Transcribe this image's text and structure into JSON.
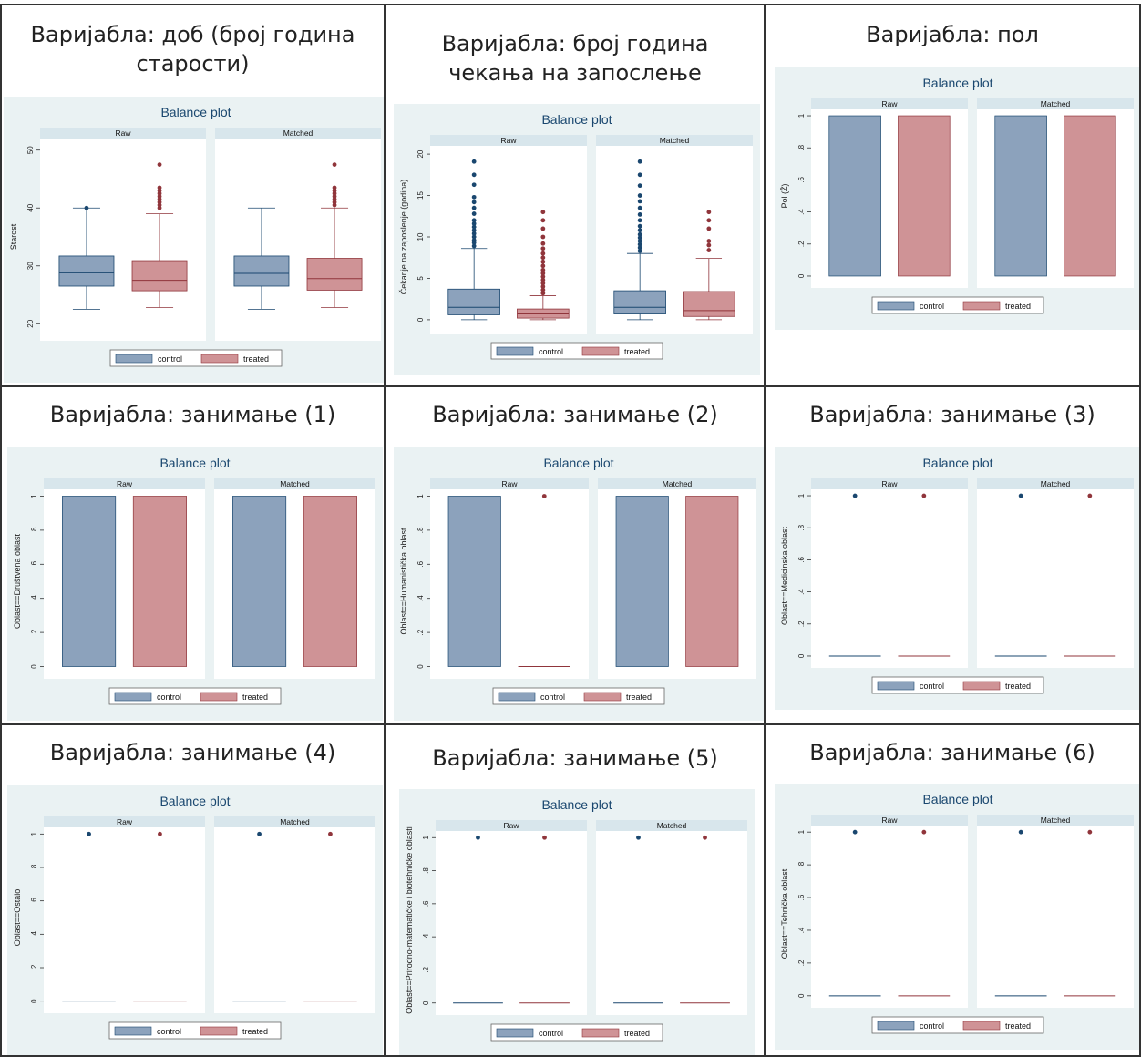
{
  "colors": {
    "panel_bg": "#eaf2f3",
    "plot_bg": "#ffffff",
    "strip_bg": "#d8e6ec",
    "control": "#8ca2bc",
    "control_stroke": "#1a476f",
    "treated": "#cf9396",
    "treated_stroke": "#90353b",
    "title": "#1a476f"
  },
  "cells": [
    {
      "title": "Варијабла: доб (број година старости)"
    },
    {
      "title": "Варијабла: број година чекања на запослење"
    },
    {
      "title": "Варијабла: пол"
    },
    {
      "title": "Варијабла: занимање (1)"
    },
    {
      "title": "Варијабла: занимање (2)"
    },
    {
      "title": "Варијабла: занимање (3)"
    },
    {
      "title": "Варијабла: занимање (4)"
    },
    {
      "title": "Варијабла: занимање (5)"
    },
    {
      "title": "Варијабла: занимање (6)"
    }
  ],
  "chart_data": [
    {
      "type": "boxplot",
      "title": "Balance plot",
      "ylabel": "Starost",
      "panels": [
        "Raw",
        "Matched"
      ],
      "legend": [
        "control",
        "treated"
      ],
      "ylim": [
        18,
        52
      ],
      "yticks": [
        "20",
        "30",
        "40",
        "50"
      ],
      "ytick_values": [
        20,
        30,
        40,
        50
      ],
      "series": [
        {
          "name": "control",
          "panel": "Raw",
          "min": 22.5,
          "q1": 26.5,
          "median": 28.8,
          "q3": 31.7,
          "max": 40,
          "outliers": [
            40
          ]
        },
        {
          "name": "treated",
          "panel": "Raw",
          "min": 22.8,
          "q1": 25.7,
          "median": 27.5,
          "q3": 30.9,
          "max": 39,
          "outliers": [
            40,
            40.5,
            41,
            41.5,
            42,
            42.5,
            43,
            43.5,
            47.5
          ]
        },
        {
          "name": "control",
          "panel": "Matched",
          "min": 22.5,
          "q1": 26.5,
          "median": 28.7,
          "q3": 31.7,
          "max": 40,
          "outliers": []
        },
        {
          "name": "treated",
          "panel": "Matched",
          "min": 22.8,
          "q1": 25.8,
          "median": 27.8,
          "q3": 31.3,
          "max": 40,
          "outliers": [
            40.5,
            41,
            41.5,
            42,
            42.5,
            43,
            43.5,
            47.5
          ]
        }
      ]
    },
    {
      "type": "boxplot",
      "title": "Balance plot",
      "ylabel": "Čekanje na zaposlenje (godina)",
      "panels": [
        "Raw",
        "Matched"
      ],
      "legend": [
        "control",
        "treated"
      ],
      "ylim": [
        -1,
        21
      ],
      "yticks": [
        "0",
        "5",
        "10",
        "15",
        "20"
      ],
      "ytick_values": [
        0,
        5,
        10,
        15,
        20
      ],
      "series": [
        {
          "name": "control",
          "panel": "Raw",
          "min": 0,
          "q1": 0.6,
          "median": 1.5,
          "q3": 3.7,
          "max": 8.6,
          "outliers": [
            8.9,
            9.3,
            9.6,
            10,
            10.4,
            10.8,
            11.2,
            11.6,
            12,
            12.8,
            13.5,
            14.2,
            14.8,
            16.3,
            17.5,
            19.1
          ]
        },
        {
          "name": "treated",
          "panel": "Raw",
          "min": 0,
          "q1": 0.2,
          "median": 0.7,
          "q3": 1.3,
          "max": 2.9,
          "outliers": [
            3.2,
            3.6,
            4,
            4.4,
            4.8,
            5.2,
            5.6,
            6,
            6.5,
            7,
            7.5,
            8,
            8.6,
            9.2,
            10,
            11,
            12,
            13
          ]
        },
        {
          "name": "control",
          "panel": "Matched",
          "min": 0,
          "q1": 0.7,
          "median": 1.5,
          "q3": 3.5,
          "max": 8,
          "outliers": [
            8.3,
            8.7,
            9.1,
            9.5,
            9.9,
            10.3,
            10.8,
            11.3,
            12,
            12.7,
            13.5,
            14.3,
            15,
            16.2,
            17.5,
            19.1
          ]
        },
        {
          "name": "treated",
          "panel": "Matched",
          "min": 0,
          "q1": 0.4,
          "median": 1.1,
          "q3": 3.4,
          "max": 7.4,
          "outliers": [
            8.4,
            9,
            9.5,
            11,
            12,
            13
          ]
        }
      ]
    },
    {
      "type": "bar",
      "title": "Balance plot",
      "ylabel": "Pol (Ž)",
      "panels": [
        "Raw",
        "Matched"
      ],
      "legend": [
        "control",
        "treated"
      ],
      "ylim": [
        -0.04,
        1.04
      ],
      "yticks": [
        "0",
        ".2",
        ".4",
        ".6",
        ".8",
        "1"
      ],
      "ytick_values": [
        0,
        0.2,
        0.4,
        0.6,
        0.8,
        1
      ],
      "series": [
        {
          "name": "control",
          "panel": "Raw",
          "value": 1
        },
        {
          "name": "treated",
          "panel": "Raw",
          "value": 1
        },
        {
          "name": "control",
          "panel": "Matched",
          "value": 1
        },
        {
          "name": "treated",
          "panel": "Matched",
          "value": 1
        }
      ]
    },
    {
      "type": "bar",
      "title": "Balance plot",
      "ylabel": "Oblast==Društvena oblast",
      "panels": [
        "Raw",
        "Matched"
      ],
      "legend": [
        "control",
        "treated"
      ],
      "ylim": [
        -0.04,
        1.04
      ],
      "yticks": [
        "0",
        ".2",
        ".4",
        ".6",
        ".8",
        "1"
      ],
      "ytick_values": [
        0,
        0.2,
        0.4,
        0.6,
        0.8,
        1
      ],
      "series": [
        {
          "name": "control",
          "panel": "Raw",
          "value": 1
        },
        {
          "name": "treated",
          "panel": "Raw",
          "value": 1
        },
        {
          "name": "control",
          "panel": "Matched",
          "value": 1
        },
        {
          "name": "treated",
          "panel": "Matched",
          "value": 1
        }
      ]
    },
    {
      "type": "bar",
      "title": "Balance plot",
      "ylabel": "Oblast==Humanistička oblast",
      "panels": [
        "Raw",
        "Matched"
      ],
      "legend": [
        "control",
        "treated"
      ],
      "ylim": [
        -0.04,
        1.04
      ],
      "yticks": [
        "0",
        ".2",
        ".4",
        ".6",
        ".8",
        "1"
      ],
      "ytick_values": [
        0,
        0.2,
        0.4,
        0.6,
        0.8,
        1
      ],
      "series": [
        {
          "name": "control",
          "panel": "Raw",
          "value": 1
        },
        {
          "name": "treated",
          "panel": "Raw",
          "value": 0,
          "outlier": 1
        },
        {
          "name": "control",
          "panel": "Matched",
          "value": 1
        },
        {
          "name": "treated",
          "panel": "Matched",
          "value": 1
        }
      ]
    },
    {
      "type": "bar",
      "title": "Balance plot",
      "ylabel": "Oblast==Medicinska oblast",
      "panels": [
        "Raw",
        "Matched"
      ],
      "legend": [
        "control",
        "treated"
      ],
      "ylim": [
        -0.04,
        1.04
      ],
      "yticks": [
        "0",
        ".2",
        ".4",
        ".6",
        ".8",
        "1"
      ],
      "ytick_values": [
        0,
        0.2,
        0.4,
        0.6,
        0.8,
        1
      ],
      "series": [
        {
          "name": "control",
          "panel": "Raw",
          "value": 0,
          "outlier": 1
        },
        {
          "name": "treated",
          "panel": "Raw",
          "value": 0,
          "outlier": 1
        },
        {
          "name": "control",
          "panel": "Matched",
          "value": 0,
          "outlier": 1
        },
        {
          "name": "treated",
          "panel": "Matched",
          "value": 0,
          "outlier": 1
        }
      ]
    },
    {
      "type": "bar",
      "title": "Balance plot",
      "ylabel": "Oblast==Ostalo",
      "panels": [
        "Raw",
        "Matched"
      ],
      "legend": [
        "control",
        "treated"
      ],
      "ylim": [
        -0.04,
        1.04
      ],
      "yticks": [
        "0",
        ".2",
        ".4",
        ".6",
        ".8",
        "1"
      ],
      "ytick_values": [
        0,
        0.2,
        0.4,
        0.6,
        0.8,
        1
      ],
      "series": [
        {
          "name": "control",
          "panel": "Raw",
          "value": 0,
          "outlier": 1
        },
        {
          "name": "treated",
          "panel": "Raw",
          "value": 0,
          "outlier": 1
        },
        {
          "name": "control",
          "panel": "Matched",
          "value": 0,
          "outlier": 1
        },
        {
          "name": "treated",
          "panel": "Matched",
          "value": 0,
          "outlier": 1
        }
      ]
    },
    {
      "type": "bar",
      "title": "Balance plot",
      "ylabel": "Oblast==Prirodno-matematičke i biotehničke oblasti",
      "panels": [
        "Raw",
        "Matched"
      ],
      "legend": [
        "control",
        "treated"
      ],
      "ylim": [
        -0.04,
        1.04
      ],
      "yticks": [
        "0",
        ".2",
        ".4",
        ".6",
        ".8",
        "1"
      ],
      "ytick_values": [
        0,
        0.2,
        0.4,
        0.6,
        0.8,
        1
      ],
      "series": [
        {
          "name": "control",
          "panel": "Raw",
          "value": 0,
          "outlier": 1
        },
        {
          "name": "treated",
          "panel": "Raw",
          "value": 0,
          "outlier": 1
        },
        {
          "name": "control",
          "panel": "Matched",
          "value": 0,
          "outlier": 1
        },
        {
          "name": "treated",
          "panel": "Matched",
          "value": 0,
          "outlier": 1
        }
      ]
    },
    {
      "type": "bar",
      "title": "Balance plot",
      "ylabel": "Oblast==Tehnička oblast",
      "panels": [
        "Raw",
        "Matched"
      ],
      "legend": [
        "control",
        "treated"
      ],
      "ylim": [
        -0.04,
        1.04
      ],
      "yticks": [
        "0",
        ".2",
        ".4",
        ".6",
        ".8",
        "1"
      ],
      "ytick_values": [
        0,
        0.2,
        0.4,
        0.6,
        0.8,
        1
      ],
      "series": [
        {
          "name": "control",
          "panel": "Raw",
          "value": 0,
          "outlier": 1
        },
        {
          "name": "treated",
          "panel": "Raw",
          "value": 0,
          "outlier": 1
        },
        {
          "name": "control",
          "panel": "Matched",
          "value": 0,
          "outlier": 1
        },
        {
          "name": "treated",
          "panel": "Matched",
          "value": 0,
          "outlier": 1
        }
      ]
    }
  ]
}
